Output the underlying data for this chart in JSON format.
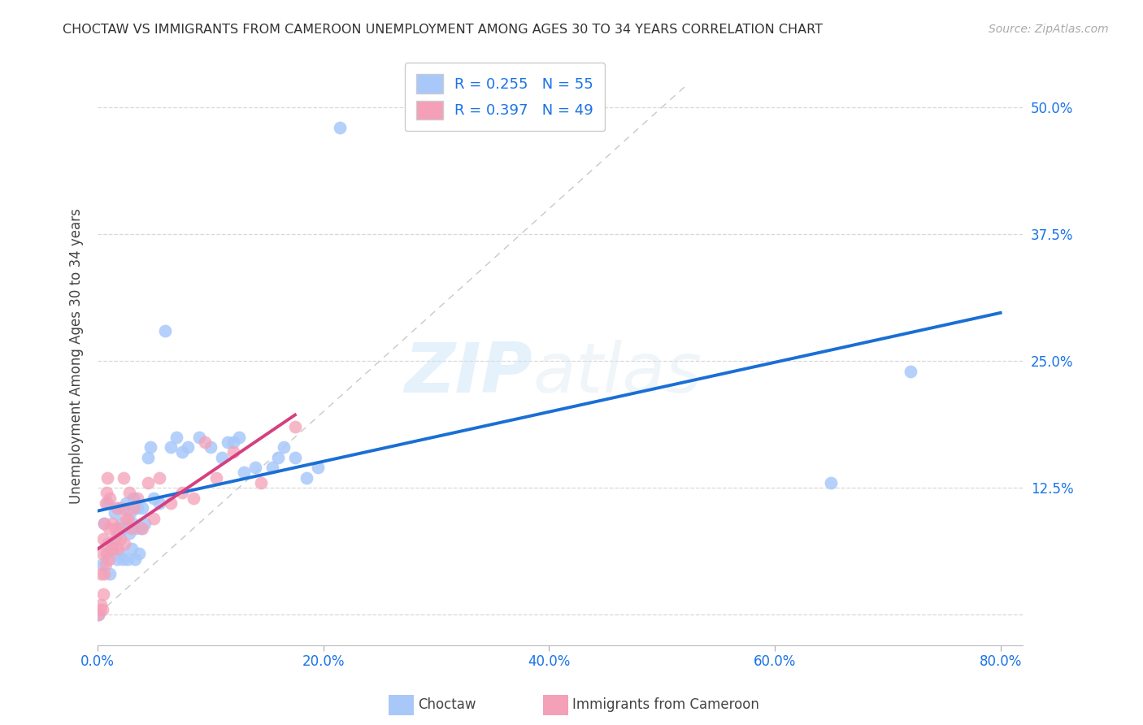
{
  "title": "CHOCTAW VS IMMIGRANTS FROM CAMEROON UNEMPLOYMENT AMONG AGES 30 TO 34 YEARS CORRELATION CHART",
  "source": "Source: ZipAtlas.com",
  "legend_label1": "Choctaw",
  "legend_label2": "Immigrants from Cameroon",
  "ylabel": "Unemployment Among Ages 30 to 34 years",
  "xlim": [
    0.0,
    0.82
  ],
  "ylim": [
    -0.03,
    0.54
  ],
  "xticks": [
    0.0,
    0.2,
    0.4,
    0.6,
    0.8
  ],
  "xticklabels": [
    "0.0%",
    "20.0%",
    "40.0%",
    "60.0%",
    "80.0%"
  ],
  "ytick_vals": [
    0.0,
    0.125,
    0.25,
    0.375,
    0.5
  ],
  "yticklabels": [
    "",
    "12.5%",
    "25.0%",
    "37.5%",
    "50.0%"
  ],
  "choctaw_R": "0.255",
  "choctaw_N": "55",
  "cameroon_R": "0.397",
  "cameroon_N": "49",
  "choctaw_color": "#a8c8fa",
  "cameroon_color": "#f4a0b8",
  "choctaw_line_color": "#1a6fd4",
  "cameroon_line_color": "#d44080",
  "diagonal_color": "#c8c8c8",
  "watermark_zip": "ZIP",
  "watermark_atlas": "atlas",
  "choctaw_x": [
    0.001,
    0.004,
    0.006,
    0.008,
    0.009,
    0.011,
    0.013,
    0.015,
    0.017,
    0.018,
    0.019,
    0.02,
    0.021,
    0.022,
    0.023,
    0.025,
    0.027,
    0.028,
    0.029,
    0.03,
    0.031,
    0.032,
    0.033,
    0.034,
    0.035,
    0.037,
    0.038,
    0.04,
    0.042,
    0.045,
    0.047,
    0.05,
    0.055,
    0.06,
    0.065,
    0.07,
    0.075,
    0.08,
    0.09,
    0.1,
    0.11,
    0.115,
    0.12,
    0.125,
    0.13,
    0.14,
    0.155,
    0.16,
    0.165,
    0.175,
    0.185,
    0.195,
    0.215,
    0.65,
    0.72
  ],
  "choctaw_y": [
    0.0,
    0.05,
    0.09,
    0.06,
    0.11,
    0.04,
    0.07,
    0.1,
    0.055,
    0.08,
    0.105,
    0.06,
    0.09,
    0.055,
    0.085,
    0.11,
    0.055,
    0.08,
    0.1,
    0.065,
    0.09,
    0.115,
    0.055,
    0.085,
    0.105,
    0.06,
    0.085,
    0.105,
    0.09,
    0.155,
    0.165,
    0.115,
    0.11,
    0.28,
    0.165,
    0.175,
    0.16,
    0.165,
    0.175,
    0.165,
    0.155,
    0.17,
    0.17,
    0.175,
    0.14,
    0.145,
    0.145,
    0.155,
    0.165,
    0.155,
    0.135,
    0.145,
    0.48,
    0.13,
    0.24
  ],
  "cameroon_x": [
    0.001,
    0.002,
    0.003,
    0.003,
    0.004,
    0.004,
    0.005,
    0.005,
    0.006,
    0.006,
    0.007,
    0.007,
    0.008,
    0.008,
    0.009,
    0.009,
    0.01,
    0.01,
    0.011,
    0.012,
    0.013,
    0.014,
    0.015,
    0.016,
    0.017,
    0.018,
    0.019,
    0.02,
    0.022,
    0.023,
    0.024,
    0.025,
    0.027,
    0.028,
    0.03,
    0.032,
    0.035,
    0.04,
    0.045,
    0.05,
    0.055,
    0.065,
    0.075,
    0.085,
    0.095,
    0.105,
    0.12,
    0.145,
    0.175
  ],
  "cameroon_y": [
    0.0,
    0.005,
    0.01,
    0.04,
    0.005,
    0.06,
    0.02,
    0.075,
    0.04,
    0.09,
    0.05,
    0.11,
    0.06,
    0.12,
    0.07,
    0.135,
    0.055,
    0.085,
    0.115,
    0.065,
    0.09,
    0.065,
    0.075,
    0.085,
    0.105,
    0.065,
    0.085,
    0.075,
    0.105,
    0.135,
    0.07,
    0.095,
    0.095,
    0.12,
    0.085,
    0.105,
    0.115,
    0.085,
    0.13,
    0.095,
    0.135,
    0.11,
    0.12,
    0.115,
    0.17,
    0.135,
    0.16,
    0.13,
    0.185
  ],
  "background_color": "#ffffff",
  "grid_color": "#d8d8d8"
}
